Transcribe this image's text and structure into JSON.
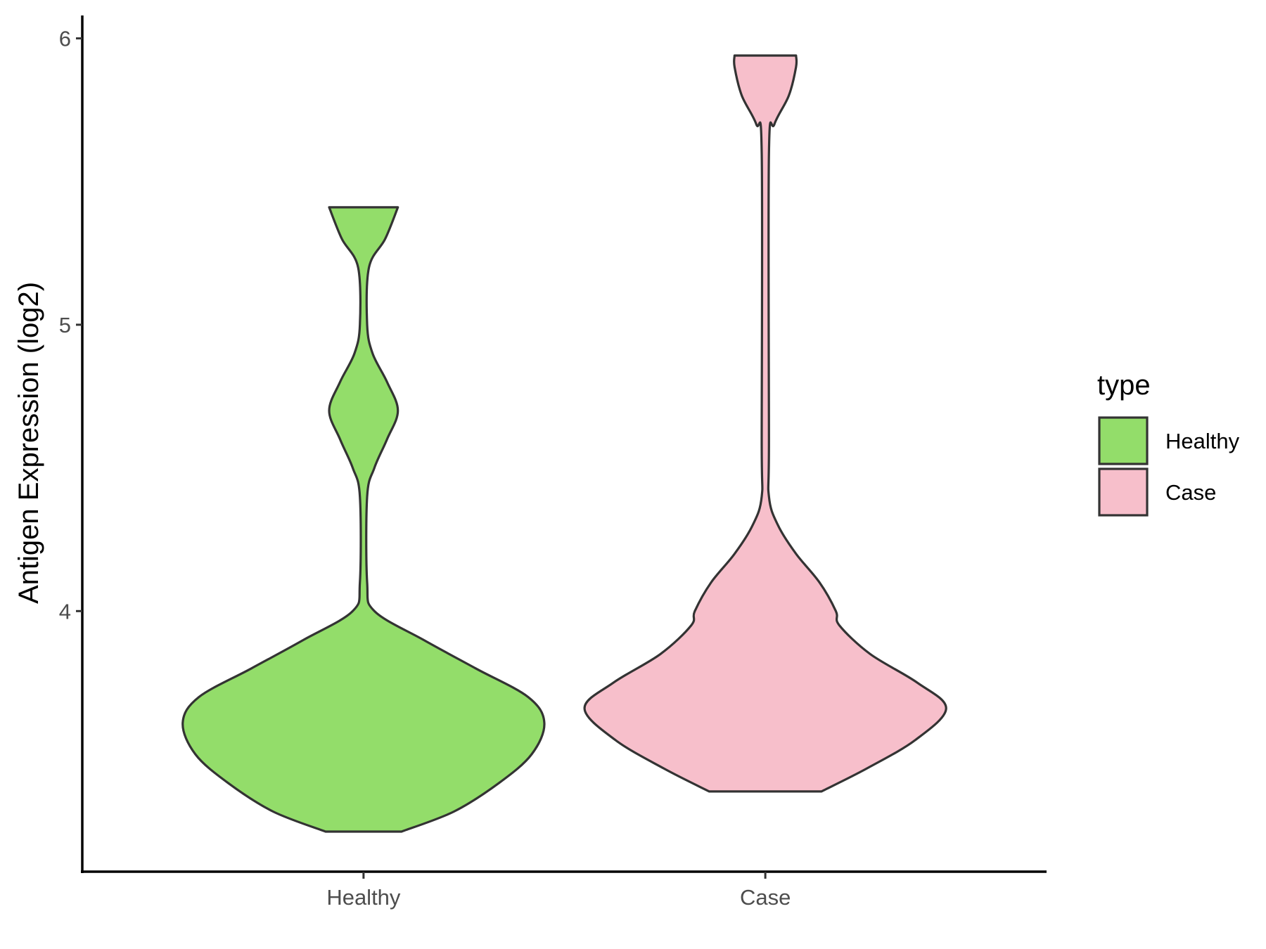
{
  "chart_data": {
    "type": "violin",
    "title": "",
    "xlabel": "",
    "ylabel": "Antigen Expression (log2)",
    "categories": [
      "Healthy",
      "Case"
    ],
    "yticks": [
      "4",
      "5",
      "6"
    ],
    "ylim": [
      3.09,
      6.08
    ],
    "grid": false,
    "legend": {
      "title": "type",
      "position": "right",
      "items": [
        {
          "label": "Healthy",
          "color": "#93dd6a"
        },
        {
          "label": "Case",
          "color": "#f7bfcb"
        }
      ]
    },
    "series": [
      {
        "name": "Healthy",
        "color": "#93dd6a",
        "y_min": 3.23,
        "y_max": 5.41,
        "density_profile": [
          [
            3.23,
            0.21
          ],
          [
            3.3,
            0.5
          ],
          [
            3.4,
            0.75
          ],
          [
            3.5,
            0.93
          ],
          [
            3.61,
            1.0
          ],
          [
            3.7,
            0.91
          ],
          [
            3.8,
            0.62
          ],
          [
            3.9,
            0.33
          ],
          [
            4.0,
            0.06
          ],
          [
            4.1,
            0.02
          ],
          [
            4.4,
            0.02
          ],
          [
            4.5,
            0.06
          ],
          [
            4.6,
            0.13
          ],
          [
            4.7,
            0.19
          ],
          [
            4.8,
            0.13
          ],
          [
            4.9,
            0.05
          ],
          [
            5.0,
            0.02
          ],
          [
            5.2,
            0.03
          ],
          [
            5.3,
            0.12
          ],
          [
            5.41,
            0.19
          ]
        ]
      },
      {
        "name": "Case",
        "color": "#f7bfcb",
        "y_min": 3.37,
        "y_max": 5.94,
        "density_profile": [
          [
            3.37,
            0.31
          ],
          [
            3.45,
            0.56
          ],
          [
            3.55,
            0.83
          ],
          [
            3.66,
            1.0
          ],
          [
            3.75,
            0.84
          ],
          [
            3.85,
            0.58
          ],
          [
            3.95,
            0.41
          ],
          [
            4.0,
            0.39
          ],
          [
            4.1,
            0.3
          ],
          [
            4.2,
            0.17
          ],
          [
            4.3,
            0.07
          ],
          [
            4.4,
            0.02
          ],
          [
            4.6,
            0.02
          ],
          [
            5.6,
            0.02
          ],
          [
            5.7,
            0.05
          ],
          [
            5.8,
            0.13
          ],
          [
            5.9,
            0.17
          ],
          [
            5.94,
            0.17
          ]
        ]
      }
    ]
  }
}
